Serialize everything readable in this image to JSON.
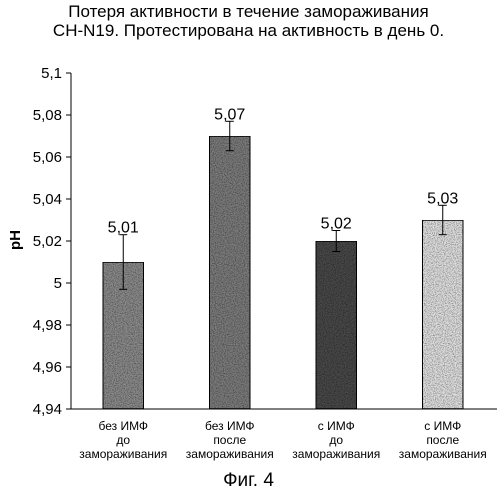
{
  "chart_data": {
    "type": "bar",
    "title_lines": [
      "Потеря активности в течение замораживания",
      "CH-N19. Протестирована на активность в день 0."
    ],
    "ylabel": "pH",
    "xlabel": "",
    "ylim": [
      4.94,
      5.1
    ],
    "yticks": [
      4.94,
      4.96,
      4.98,
      5,
      5.02,
      5.04,
      5.06,
      5.08,
      5.1
    ],
    "ytick_labels": [
      "4,94",
      "4,96",
      "4,98",
      "5",
      "5,02",
      "5,04",
      "5,06",
      "5,08",
      "5,1"
    ],
    "categories": [
      [
        "без ИМФ",
        "до",
        "замораживания"
      ],
      [
        "без ИМФ",
        "после",
        "замораживания"
      ],
      [
        "с ИМФ",
        "до",
        "замораживания"
      ],
      [
        "с ИМФ",
        "после",
        "замораживания"
      ]
    ],
    "values": [
      5.01,
      5.07,
      5.02,
      5.03
    ],
    "value_labels": [
      "5,01",
      "5,07",
      "5,02",
      "5,03"
    ],
    "errors": [
      0.013,
      0.007,
      0.005,
      0.007
    ],
    "bar_shades": [
      "#8c8c8c",
      "#7d7d7d",
      "#4a4a4a",
      "#e2e2e2"
    ],
    "grid": false,
    "legend": "none",
    "caption": "Фиг. 4"
  }
}
